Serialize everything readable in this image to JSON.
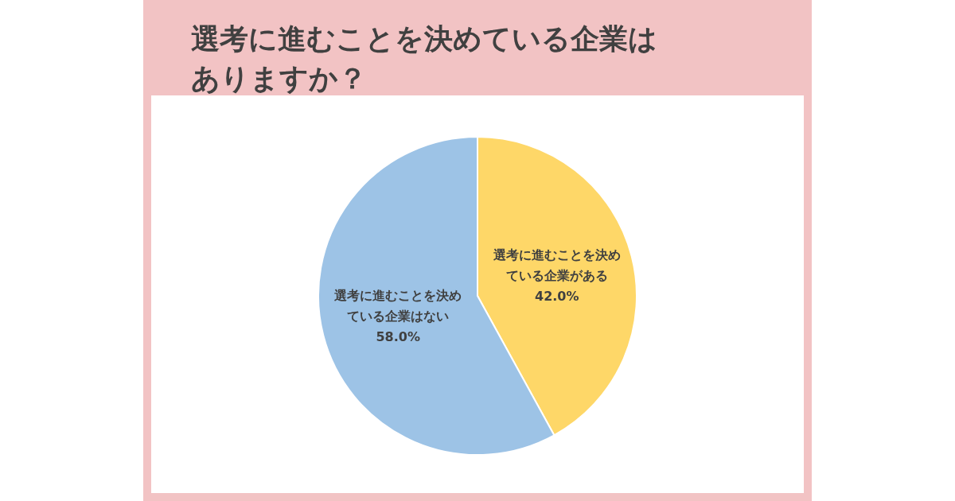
{
  "chart_data": {
    "type": "pie",
    "title": "選考に進むことを決めている企業はありますか？",
    "categories": [
      "選考に進むことを決めている企業がある",
      "選考に進むことを決めている企業はない"
    ],
    "values": [
      42.0,
      58.0
    ],
    "colors": [
      "#fed768",
      "#9dc3e6"
    ],
    "value_labels": [
      "42.0%",
      "58.0%"
    ]
  }
}
